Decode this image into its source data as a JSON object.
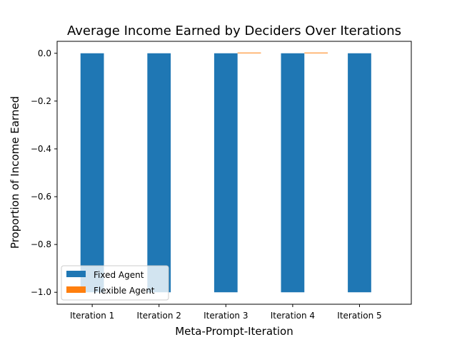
{
  "chart_data": {
    "type": "bar",
    "title": "Average Income Earned by Deciders Over Iterations",
    "xlabel": "Meta-Prompt-Iteration",
    "ylabel": "Proportion of Income Earned",
    "categories": [
      "Iteration 1",
      "Iteration 2",
      "Iteration 3",
      "Iteration 4",
      "Iteration 5"
    ],
    "series": [
      {
        "name": "Fixed Agent",
        "values": [
          -1.0,
          -1.0,
          -1.0,
          -1.0,
          -1.0
        ],
        "color": "#1f77b4"
      },
      {
        "name": "Flexible Agent",
        "values": [
          0.0,
          0.0,
          0.003,
          0.003,
          0.0
        ],
        "color": "#ff7f0e"
      }
    ],
    "ylim": [
      -1.05,
      0.05
    ],
    "yticks": [
      0.0,
      -0.2,
      -0.4,
      -0.6,
      -0.8,
      -1.0
    ],
    "ytick_labels": [
      "0.0",
      "−0.2",
      "−0.4",
      "−0.6",
      "−0.8",
      "−1.0"
    ],
    "grid": false,
    "legend_position": "lower-left"
  }
}
